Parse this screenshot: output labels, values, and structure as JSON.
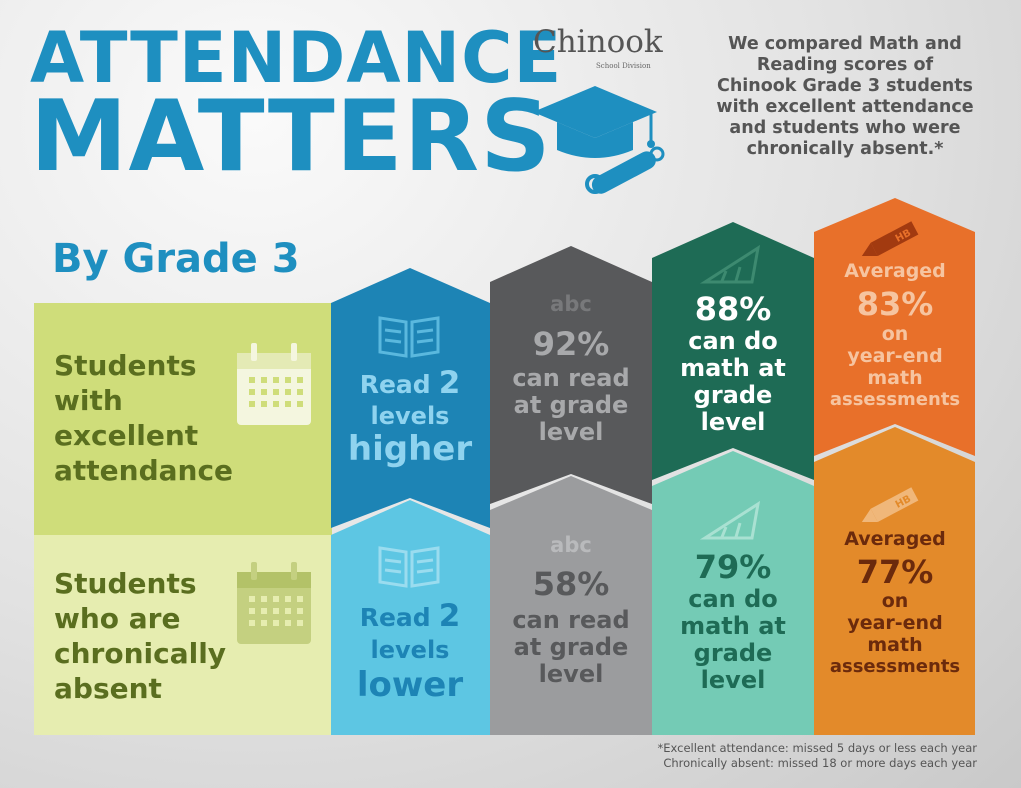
{
  "header": {
    "title_line1": "ATTENDANCE",
    "title_line2": "MATTERS",
    "logo_text": "Chinook",
    "logo_subtext": "School Division",
    "intro_lines": [
      "We compared Math and",
      "Reading scores of",
      "Chinook Grade 3 students",
      "with excellent attendance",
      "and students who were",
      "chronically absent.*"
    ]
  },
  "subtitle": "By Grade 3",
  "rows": {
    "excellent": {
      "label_lines": [
        "Students",
        "with",
        "excellent",
        "attendance"
      ]
    },
    "absent": {
      "label_lines": [
        "Students",
        "who are",
        "chronically",
        "absent"
      ]
    }
  },
  "columns": [
    {
      "icon": "book-icon",
      "excellent": {
        "word": "Read",
        "number": "2",
        "lines": [
          "levels"
        ],
        "emphasis": "higher"
      },
      "absent": {
        "word": "Read",
        "number": "2",
        "lines": [
          "levels"
        ],
        "emphasis": "lower"
      }
    },
    {
      "icon": "abc-icon",
      "icon_text": "abc",
      "excellent": {
        "value": "92%",
        "lines": [
          "can read",
          "at grade",
          "level"
        ]
      },
      "absent": {
        "value": "58%",
        "lines": [
          "can read",
          "at grade",
          "level"
        ]
      }
    },
    {
      "icon": "ruler-triangle-icon",
      "excellent": {
        "value": "88%",
        "lines": [
          "can do",
          "math at",
          "grade",
          "level"
        ]
      },
      "absent": {
        "value": "79%",
        "lines": [
          "can do",
          "math at",
          "grade",
          "level"
        ]
      }
    },
    {
      "icon": "pencil-icon",
      "pencil_text": "HB",
      "excellent": {
        "pre": "Averaged",
        "value": "83%",
        "lines": [
          "on",
          "year-end",
          "math",
          "assessments"
        ]
      },
      "absent": {
        "pre": "Averaged",
        "value": "77%",
        "lines": [
          "on",
          "year-end",
          "math",
          "assessments"
        ]
      }
    }
  ],
  "footnotes": [
    "*Excellent attendance: missed 5 days or less each year",
    "Chronically absent: missed 18 or more days each year"
  ],
  "colors": {
    "title_blue": "#1e8fc0",
    "col1_top": "#1d84b5",
    "col1_bot": "#5dc6e3",
    "col2_top": "#58595b",
    "col2_bot": "#9b9c9e",
    "col3_top": "#1e6b55",
    "col3_bot": "#74cbb5",
    "col4_top": "#e8702a",
    "col4_bot": "#e38a2a",
    "row_top": "#cfdd7a",
    "row_bot": "#e6edb0",
    "label_green": "#5a6e1f"
  }
}
